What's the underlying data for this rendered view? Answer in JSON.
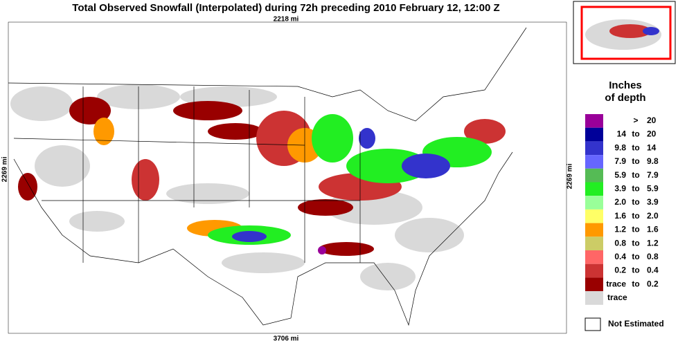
{
  "title": "Total Observed Snowfall (Interpolated) during 72h preceding 2010 February 12, 12:00 Z",
  "distances": {
    "top": "2218 mi",
    "left": "2269 mi",
    "right": "2269 mi",
    "bottom": "3706 mi"
  },
  "legend": {
    "title": [
      "Inches",
      "of depth"
    ],
    "items": [
      {
        "color": "#990099",
        "parts": [
          ">",
          "20"
        ]
      },
      {
        "color": "#000099",
        "parts": [
          "14",
          "to",
          "20"
        ]
      },
      {
        "color": "#3333cc",
        "parts": [
          "9.8",
          "to",
          "14"
        ]
      },
      {
        "color": "#6666ff",
        "parts": [
          "7.9",
          "to",
          "9.8"
        ]
      },
      {
        "color": "#55bb55",
        "parts": [
          "5.9",
          "to",
          "7.9"
        ]
      },
      {
        "color": "#22ee22",
        "parts": [
          "3.9",
          "to",
          "5.9"
        ]
      },
      {
        "color": "#99ff99",
        "parts": [
          "2.0",
          "to",
          "3.9"
        ]
      },
      {
        "color": "#ffff66",
        "parts": [
          "1.6",
          "to",
          "2.0"
        ]
      },
      {
        "color": "#ff9900",
        "parts": [
          "1.2",
          "to",
          "1.6"
        ]
      },
      {
        "color": "#cccc66",
        "parts": [
          "0.8",
          "to",
          "1.2"
        ]
      },
      {
        "color": "#ff6666",
        "parts": [
          "0.4",
          "to",
          "0.8"
        ]
      },
      {
        "color": "#cc3333",
        "parts": [
          "0.2",
          "to",
          "0.4"
        ]
      },
      {
        "color": "#990000",
        "parts": [
          "trace",
          "to",
          "0.2"
        ]
      },
      {
        "color": "#d9d9d9",
        "parts": [
          "trace"
        ]
      }
    ],
    "not_estimated": {
      "color": "#ffffff",
      "label": "Not Estimated"
    }
  }
}
